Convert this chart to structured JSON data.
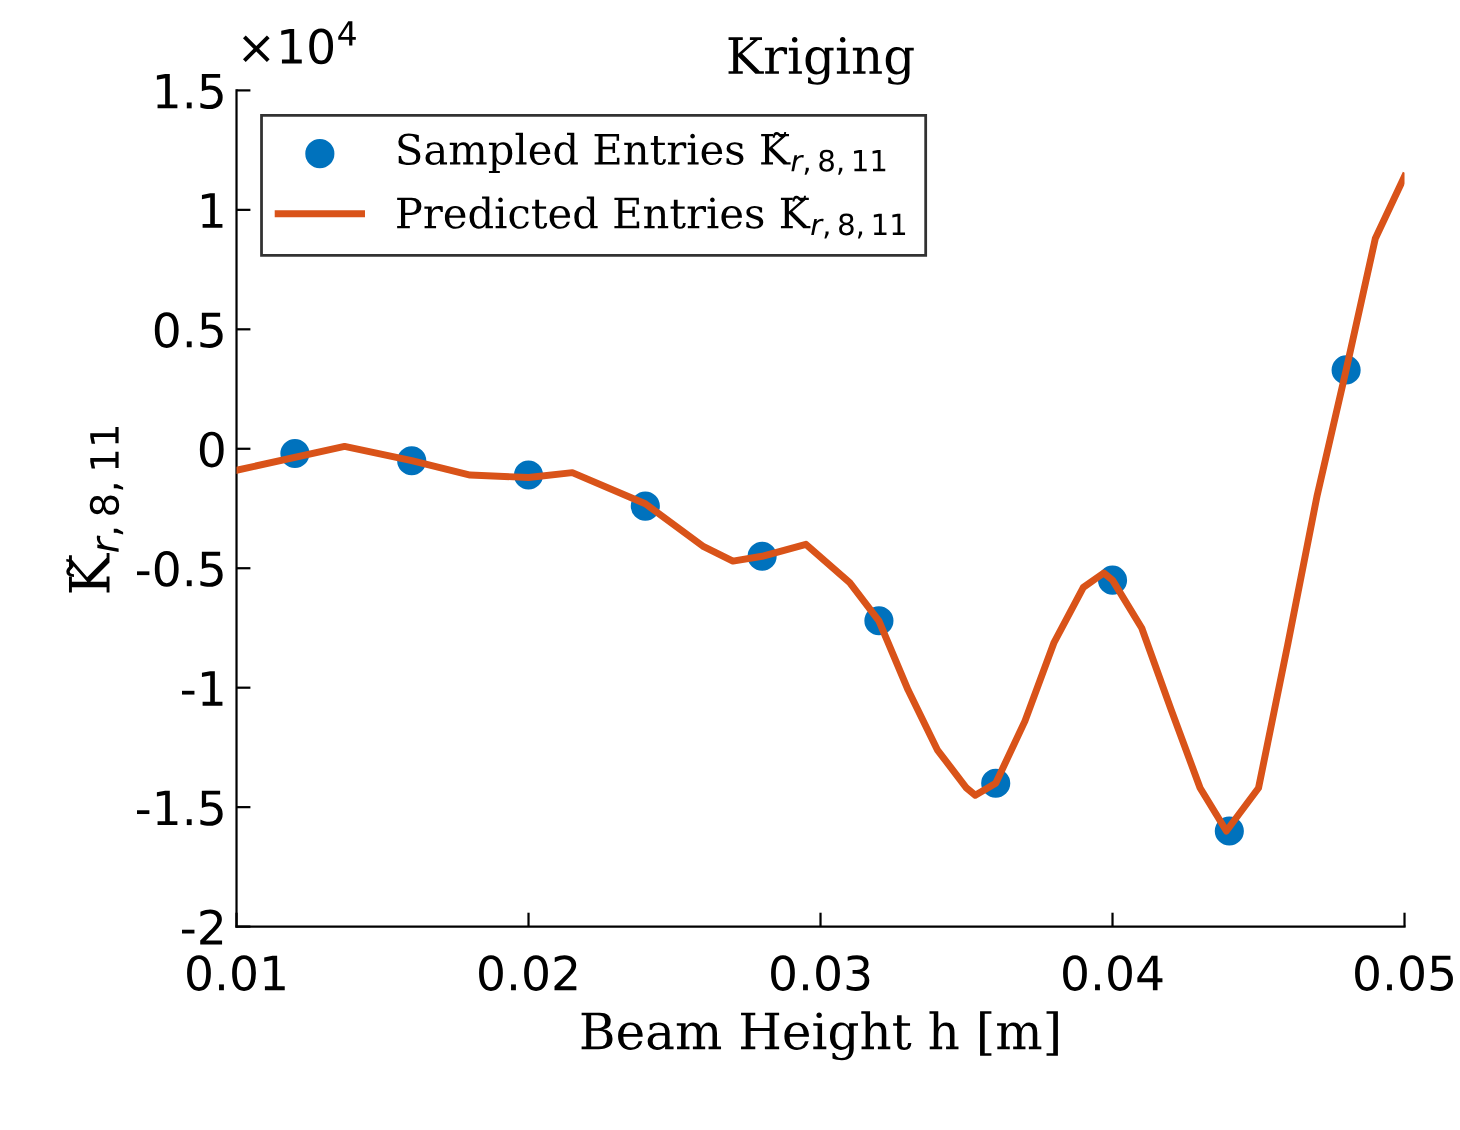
{
  "chart_data": {
    "type": "scatter",
    "title": "Kriging",
    "xlabel": "Beam Height h [m]",
    "ylabel": "K̃$_{r,8,11}$",
    "annotations": [
      "×10$^{4}$"
    ],
    "xlim": [
      0.01,
      0.05
    ],
    "xticks": [
      0.01,
      0.02,
      0.03,
      0.04,
      0.05
    ],
    "ylim": [
      -2,
      1.5
    ],
    "yticks": [
      -2,
      -1.5,
      -1,
      -0.5,
      0,
      0.5,
      1,
      1.5
    ],
    "grid": false,
    "legend": "top left",
    "series": [
      {
        "name": "Sampled Entries K̃$_{r,8,11}$",
        "marker": "circle",
        "color": "#0072bd",
        "x": [
          0.012,
          0.016,
          0.02,
          0.024,
          0.028,
          0.032,
          0.036,
          0.04,
          0.044,
          0.048
        ],
        "values": [
          -0.02,
          -0.05,
          -0.11,
          -0.24,
          -0.45,
          -0.72,
          -1.4,
          -0.55,
          -1.6,
          0.33
        ]
      },
      {
        "name": "Predicted Entries K̃$_{r,8,11}$",
        "type": "line",
        "marker": "none",
        "line_style": "solid",
        "color": "#d95319",
        "x": [
          0.01,
          0.0137,
          0.016,
          0.018,
          0.02,
          0.0215,
          0.024,
          0.026,
          0.027,
          0.028,
          0.0295,
          0.031,
          0.032,
          0.033,
          0.034,
          0.035,
          0.0353,
          0.036,
          0.037,
          0.038,
          0.039,
          0.0397,
          0.04,
          0.041,
          0.042,
          0.043,
          0.0439,
          0.045,
          0.046,
          0.047,
          0.048,
          0.049,
          0.05
        ],
        "values": [
          -0.09,
          0.01,
          -0.05,
          -0.11,
          -0.12,
          -0.1,
          -0.23,
          -0.41,
          -0.47,
          -0.45,
          -0.4,
          -0.56,
          -0.72,
          -1.01,
          -1.26,
          -1.42,
          -1.45,
          -1.4,
          -1.14,
          -0.81,
          -0.58,
          -0.52,
          -0.55,
          -0.75,
          -1.09,
          -1.42,
          -1.6,
          -1.42,
          -0.82,
          -0.2,
          0.33,
          0.88,
          1.14
        ]
      }
    ]
  }
}
